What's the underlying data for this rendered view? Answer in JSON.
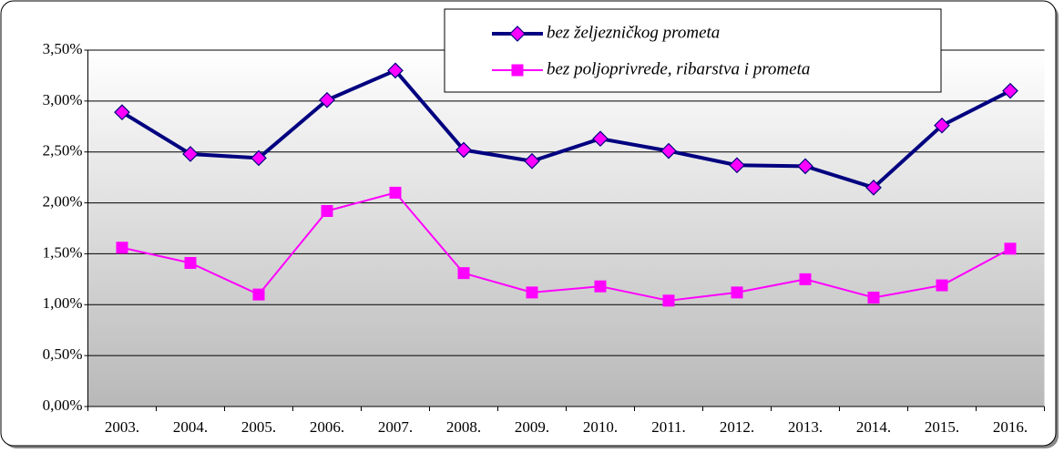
{
  "chart_data": {
    "type": "line",
    "categories": [
      "2003.",
      "2004.",
      "2005.",
      "2006.",
      "2007.",
      "2008.",
      "2009.",
      "2010.",
      "2011.",
      "2012.",
      "2013.",
      "2014.",
      "2015.",
      "2016."
    ],
    "series": [
      {
        "name": "bez željezničkog prometa",
        "color": "#000080",
        "marker": "diamond",
        "marker_color": "#ff00ff",
        "values": [
          2.89,
          2.48,
          2.44,
          3.01,
          3.3,
          2.52,
          2.41,
          2.63,
          2.51,
          2.37,
          2.36,
          2.15,
          2.76,
          3.1
        ]
      },
      {
        "name": "bez poljoprivrede, ribarstva i prometa",
        "color": "#ff00ff",
        "marker": "square",
        "marker_color": "#ff00ff",
        "values": [
          1.56,
          1.41,
          1.1,
          1.92,
          2.1,
          1.31,
          1.12,
          1.18,
          1.04,
          1.12,
          1.25,
          1.07,
          1.19,
          1.55
        ]
      }
    ],
    "ylim": [
      0,
      3.5
    ],
    "yticks": [
      {
        "value": 0,
        "label": "0,00%"
      },
      {
        "value": 0.5,
        "label": "0,50%"
      },
      {
        "value": 1,
        "label": "1,00%"
      },
      {
        "value": 1.5,
        "label": "1,50%"
      },
      {
        "value": 2,
        "label": "2,00%"
      },
      {
        "value": 2.5,
        "label": "2,50%"
      },
      {
        "value": 3,
        "label": "3,00%"
      },
      {
        "value": 3.5,
        "label": "3,50%"
      }
    ],
    "grid": true,
    "legend": "top"
  }
}
